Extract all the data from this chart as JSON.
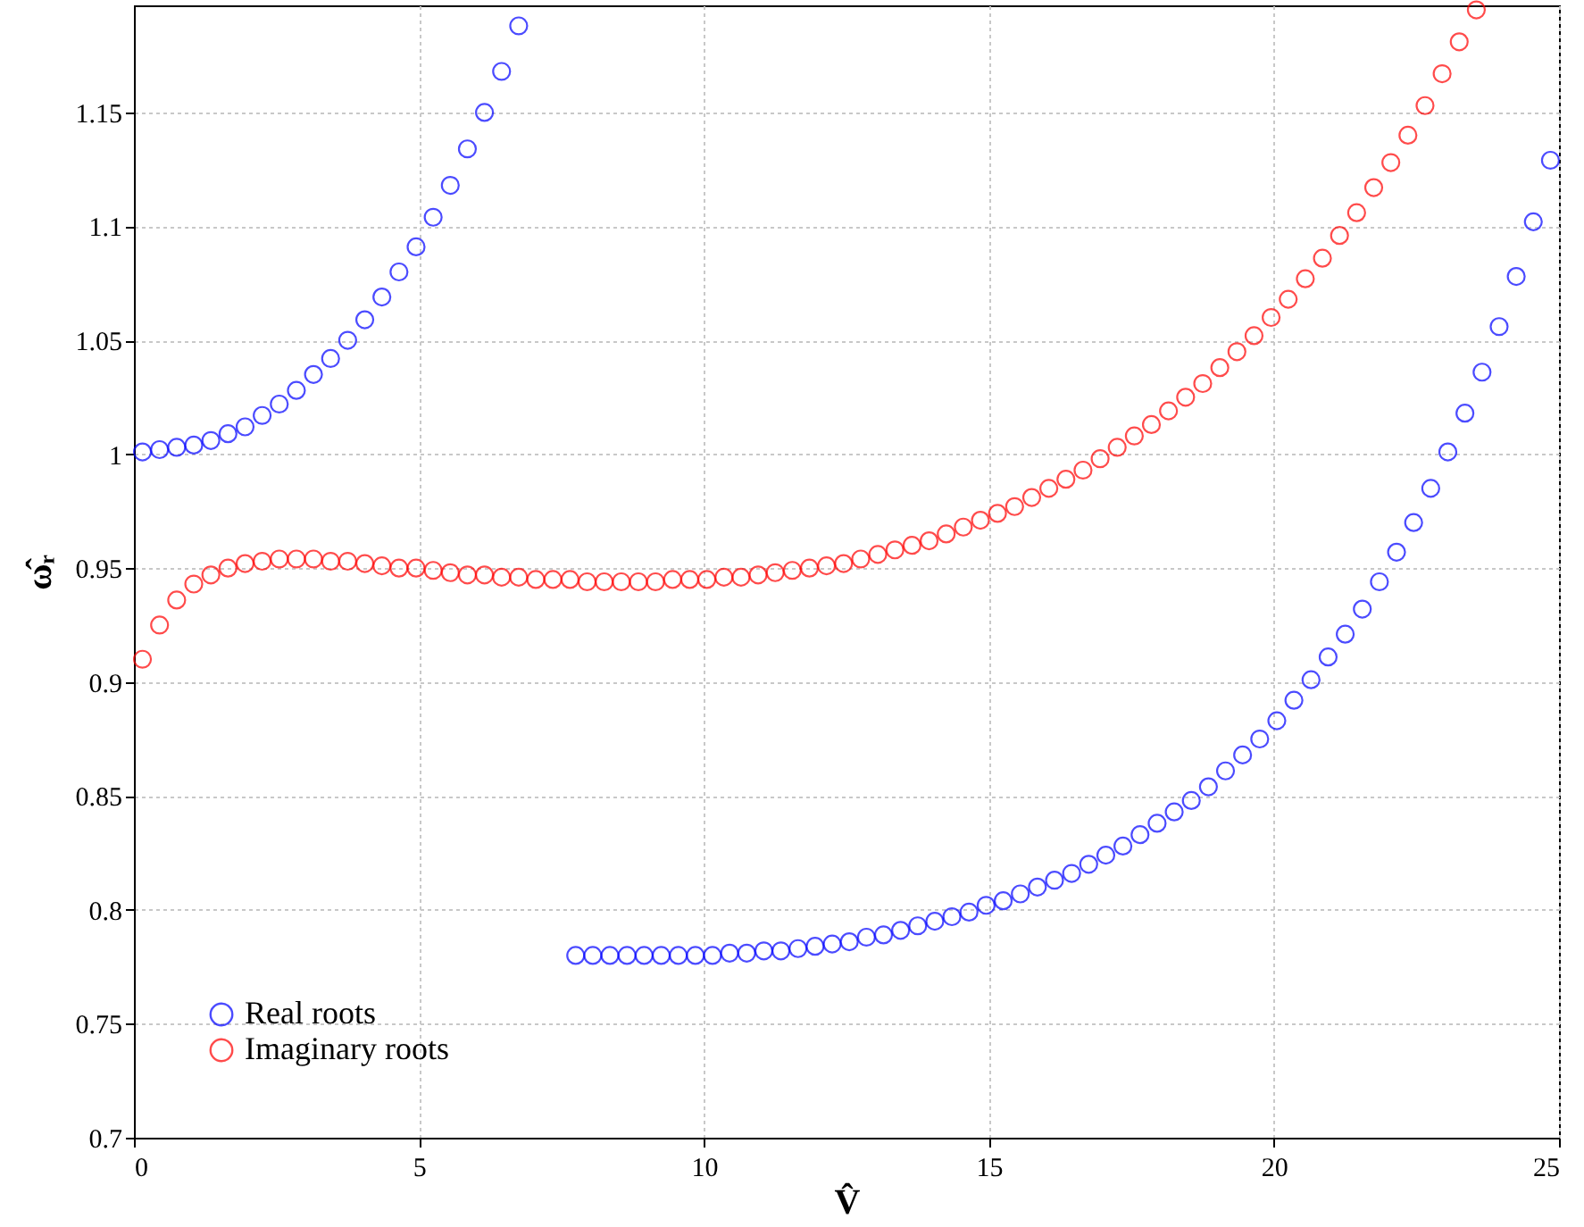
{
  "chart_data": {
    "type": "scatter",
    "xlabel": "V̂",
    "ylabel": "ω̂ᵣ",
    "xlim": [
      0,
      25
    ],
    "ylim": [
      0.7,
      1.197
    ],
    "xticks": [
      0,
      5,
      10,
      15,
      20,
      25
    ],
    "yticks": [
      0.7,
      0.75,
      0.8,
      0.85,
      0.9,
      0.95,
      1,
      1.05,
      1.1,
      1.15
    ],
    "grid": true,
    "legend": "bottom left",
    "marker": "circle",
    "series": [
      {
        "name": "Real roots",
        "color": "#0000ff",
        "x": [
          0.15,
          0.45,
          0.75,
          1.05,
          1.35,
          1.65,
          1.95,
          2.25,
          2.55,
          2.85,
          3.15,
          3.45,
          3.75,
          4.05,
          4.35,
          4.65,
          4.95,
          5.25,
          5.55,
          5.85,
          6.15,
          6.45,
          6.75,
          7.75,
          8.05,
          8.35,
          8.65,
          8.95,
          9.25,
          9.55,
          9.85,
          10.15,
          10.45,
          10.75,
          11.05,
          11.35,
          11.65,
          11.95,
          12.25,
          12.55,
          12.85,
          13.15,
          13.45,
          13.75,
          14.05,
          14.35,
          14.65,
          14.95,
          15.25,
          15.55,
          15.85,
          16.15,
          16.45,
          16.75,
          17.05,
          17.35,
          17.65,
          17.95,
          18.25,
          18.55,
          18.85,
          19.15,
          19.45,
          19.75,
          20.05,
          20.35,
          20.65,
          20.95,
          21.25,
          21.55,
          21.85,
          22.15,
          22.45,
          22.75,
          23.05,
          23.35,
          23.65,
          23.95,
          24.25,
          24.55,
          24.85
        ],
        "values": [
          1.001,
          1.002,
          1.003,
          1.004,
          1.006,
          1.009,
          1.012,
          1.017,
          1.022,
          1.028,
          1.035,
          1.042,
          1.05,
          1.059,
          1.069,
          1.08,
          1.091,
          1.104,
          1.118,
          1.134,
          1.15,
          1.168,
          1.188,
          0.78,
          0.78,
          0.78,
          0.78,
          0.78,
          0.78,
          0.78,
          0.78,
          0.78,
          0.781,
          0.781,
          0.782,
          0.782,
          0.783,
          0.784,
          0.785,
          0.786,
          0.788,
          0.789,
          0.791,
          0.793,
          0.795,
          0.797,
          0.799,
          0.802,
          0.804,
          0.807,
          0.81,
          0.813,
          0.816,
          0.82,
          0.824,
          0.828,
          0.833,
          0.838,
          0.843,
          0.848,
          0.854,
          0.861,
          0.868,
          0.875,
          0.883,
          0.892,
          0.901,
          0.911,
          0.921,
          0.932,
          0.944,
          0.957,
          0.97,
          0.985,
          1.001,
          1.018,
          1.036,
          1.056,
          1.078,
          1.102,
          1.129
        ]
      },
      {
        "name": "Imaginary roots",
        "color": "#ff0000",
        "x": [
          0.15,
          0.45,
          0.75,
          1.05,
          1.35,
          1.65,
          1.95,
          2.25,
          2.55,
          2.85,
          3.15,
          3.45,
          3.75,
          4.05,
          4.35,
          4.65,
          4.95,
          5.25,
          5.55,
          5.85,
          6.15,
          6.45,
          6.75,
          7.05,
          7.35,
          7.65,
          7.95,
          8.25,
          8.55,
          8.85,
          9.15,
          9.45,
          9.75,
          10.05,
          10.35,
          10.65,
          10.95,
          11.25,
          11.55,
          11.85,
          12.15,
          12.45,
          12.75,
          13.05,
          13.35,
          13.65,
          13.95,
          14.25,
          14.55,
          14.85,
          15.15,
          15.45,
          15.75,
          16.05,
          16.35,
          16.65,
          16.95,
          17.25,
          17.55,
          17.85,
          18.15,
          18.45,
          18.75,
          19.05,
          19.35,
          19.65,
          19.95,
          20.25,
          20.55,
          20.85,
          21.15,
          21.45,
          21.75,
          22.05,
          22.35,
          22.65,
          22.95,
          23.25,
          23.55
        ],
        "values": [
          0.91,
          0.925,
          0.936,
          0.943,
          0.947,
          0.95,
          0.952,
          0.953,
          0.954,
          0.954,
          0.954,
          0.953,
          0.953,
          0.952,
          0.951,
          0.95,
          0.95,
          0.949,
          0.948,
          0.947,
          0.947,
          0.946,
          0.946,
          0.945,
          0.945,
          0.945,
          0.944,
          0.944,
          0.944,
          0.944,
          0.944,
          0.945,
          0.945,
          0.945,
          0.946,
          0.946,
          0.947,
          0.948,
          0.949,
          0.95,
          0.951,
          0.952,
          0.954,
          0.956,
          0.958,
          0.96,
          0.962,
          0.965,
          0.968,
          0.971,
          0.974,
          0.977,
          0.981,
          0.985,
          0.989,
          0.993,
          0.998,
          1.003,
          1.008,
          1.013,
          1.019,
          1.025,
          1.031,
          1.038,
          1.045,
          1.052,
          1.06,
          1.068,
          1.077,
          1.086,
          1.096,
          1.106,
          1.117,
          1.128,
          1.14,
          1.153,
          1.167,
          1.181,
          1.195
        ]
      }
    ]
  }
}
